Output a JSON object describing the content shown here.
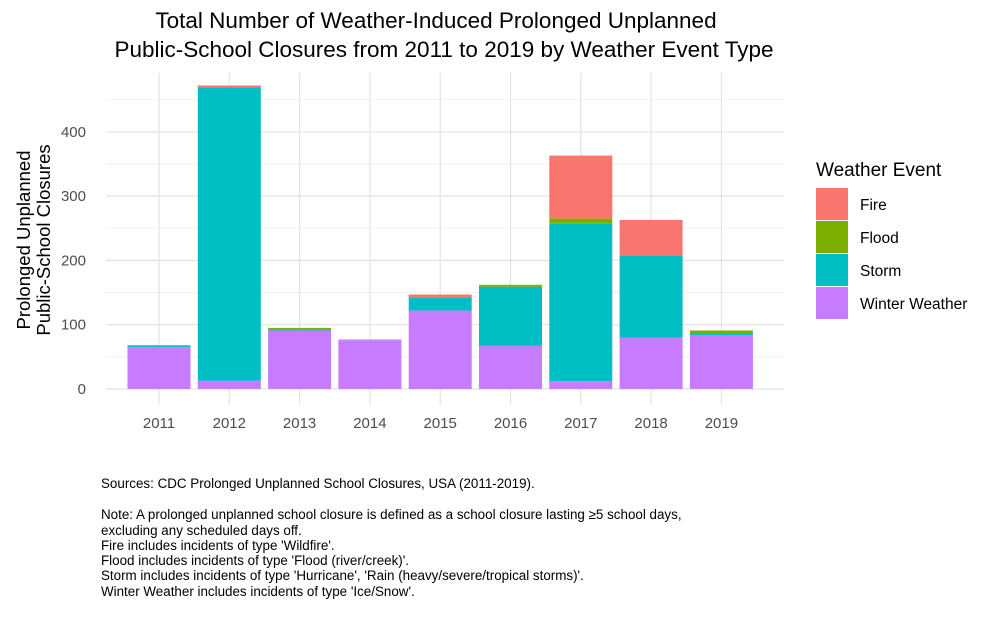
{
  "chart_data": {
    "type": "bar",
    "stacked": true,
    "title": [
      "Total Number of Weather-Induced Prolonged Unplanned",
      "Public-School Closures from 2011 to 2019 by Weather Event Type"
    ],
    "xlabel": "",
    "ylabel": [
      "Prolonged Unplanned",
      "Public-School Closures"
    ],
    "ylim": [
      0,
      480
    ],
    "yticks": [
      0,
      100,
      200,
      300,
      400
    ],
    "grid": true,
    "categories": [
      "2011",
      "2012",
      "2013",
      "2014",
      "2015",
      "2016",
      "2017",
      "2018",
      "2019"
    ],
    "series": [
      {
        "name": "Winter Weather",
        "color": "#C77CFF",
        "values": [
          65,
          13,
          91,
          76,
          122,
          67,
          12,
          80,
          84
        ]
      },
      {
        "name": "Storm",
        "color": "#00BFC4",
        "values": [
          3,
          456,
          2,
          0,
          20,
          92,
          245,
          128,
          3
        ]
      },
      {
        "name": "Flood",
        "color": "#7CAE00",
        "values": [
          0,
          0,
          2,
          0,
          1,
          3,
          8,
          0,
          4
        ]
      },
      {
        "name": "Fire",
        "color": "#F8766D",
        "values": [
          0,
          3,
          0,
          1,
          4,
          0,
          98,
          55,
          0
        ]
      }
    ],
    "legend": {
      "title": "Weather Event",
      "position": "right",
      "items": [
        {
          "name": "Fire",
          "color": "#F8766D"
        },
        {
          "name": "Flood",
          "color": "#7CAE00"
        },
        {
          "name": "Storm",
          "color": "#00BFC4"
        },
        {
          "name": "Winter Weather",
          "color": "#C77CFF"
        }
      ]
    }
  },
  "caption": {
    "sources": "Sources: CDC Prolonged Unplanned School Closures, USA (2011-2019).",
    "note_lines": [
      "Note: A prolonged unplanned school closure is defined as a school closure lasting ≥5 school days,",
      "excluding any scheduled days off.",
      "Fire includes incidents of type 'Wildfire'.",
      "Flood includes incidents of type 'Flood (river/creek)'.",
      "Storm includes incidents of type 'Hurricane', 'Rain (heavy/severe/tropical storms)'.",
      "Winter Weather includes incidents of type 'Ice/Snow'."
    ]
  }
}
